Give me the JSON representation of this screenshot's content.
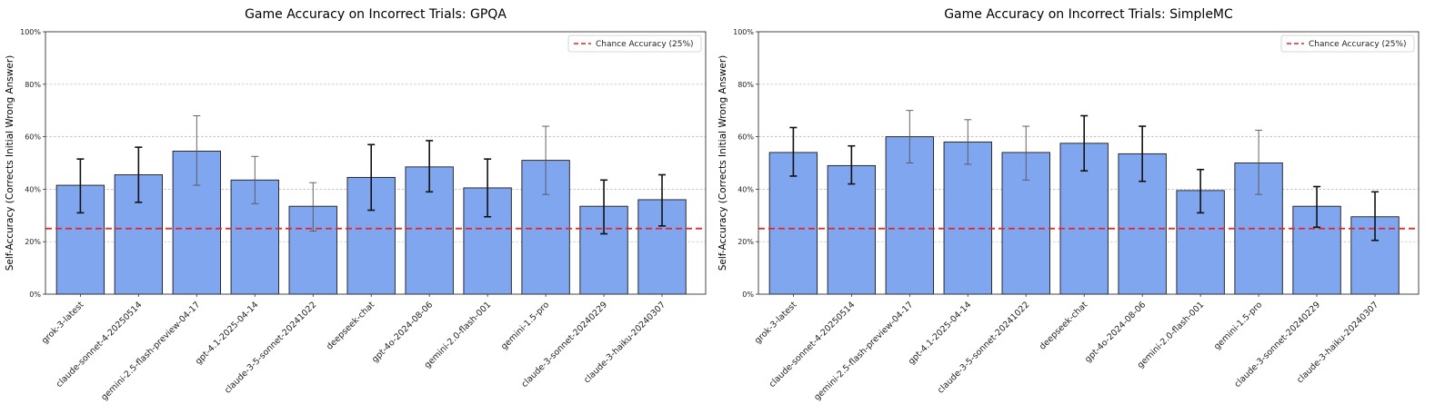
{
  "chart_data": [
    {
      "type": "bar",
      "title": "Game Accuracy on Incorrect Trials: GPQA",
      "xlabel": "",
      "ylabel": "Self-Accuracy (Corrects Initial Wrong Answer)",
      "ylim": [
        0,
        100
      ],
      "yticks": [
        "0%",
        "20%",
        "40%",
        "60%",
        "80%",
        "100%"
      ],
      "ytick_values": [
        0,
        20,
        40,
        60,
        80,
        100
      ],
      "grid": "horizontal dashed",
      "bar_color": "#7fa6ee",
      "chance_line": {
        "value": 25,
        "label": "Chance Accuracy (25%)",
        "color": "#e8242a"
      },
      "legend_position": "top-right",
      "categories": [
        "grok-3-latest",
        "claude-sonnet-4-20250514",
        "gemini-2.5-flash-preview-04-17",
        "gpt-4.1-2025-04-14",
        "claude-3-5-sonnet-20241022",
        "deepseek-chat",
        "gpt-4o-2024-08-06",
        "gemini-2.0-flash-001",
        "gemini-1.5-pro",
        "claude-3-sonnet-20240229",
        "claude-3-haiku-20240307"
      ],
      "values": [
        41.5,
        45.5,
        54.5,
        43.5,
        33.5,
        44.5,
        48.5,
        40.5,
        51,
        33.5,
        36
      ],
      "errors": [
        {
          "low": 31,
          "high": 51.5,
          "style": "bold"
        },
        {
          "low": 35,
          "high": 56,
          "style": "bold"
        },
        {
          "low": 41.5,
          "high": 68,
          "style": "thin"
        },
        {
          "low": 34.5,
          "high": 52.5,
          "style": "thin"
        },
        {
          "low": 24,
          "high": 42.5,
          "style": "thin"
        },
        {
          "low": 32,
          "high": 57,
          "style": "bold"
        },
        {
          "low": 39,
          "high": 58.5,
          "style": "bold"
        },
        {
          "low": 29.5,
          "high": 51.5,
          "style": "bold"
        },
        {
          "low": 38,
          "high": 64,
          "style": "thin"
        },
        {
          "low": 23,
          "high": 43.5,
          "style": "bold"
        },
        {
          "low": 26,
          "high": 45.5,
          "style": "bold"
        }
      ]
    },
    {
      "type": "bar",
      "title": "Game Accuracy on Incorrect Trials: SimpleMC",
      "xlabel": "",
      "ylabel": "Self-Accuracy (Corrects Initial Wrong Answer)",
      "ylim": [
        0,
        100
      ],
      "yticks": [
        "0%",
        "20%",
        "40%",
        "60%",
        "80%",
        "100%"
      ],
      "ytick_values": [
        0,
        20,
        40,
        60,
        80,
        100
      ],
      "grid": "horizontal dashed",
      "bar_color": "#7fa6ee",
      "chance_line": {
        "value": 25,
        "label": "Chance Accuracy (25%)",
        "color": "#e8242a"
      },
      "legend_position": "top-right",
      "categories": [
        "grok-3-latest",
        "claude-sonnet-4-20250514",
        "gemini-2.5-flash-preview-04-17",
        "gpt-4.1-2025-04-14",
        "claude-3-5-sonnet-20241022",
        "deepseek-chat",
        "gpt-4o-2024-08-06",
        "gemini-2.0-flash-001",
        "gemini-1.5-pro",
        "claude-3-sonnet-20240229",
        "claude-3-haiku-20240307"
      ],
      "values": [
        54,
        49,
        60,
        58,
        54,
        57.5,
        53.5,
        39.5,
        50,
        33.5,
        29.5
      ],
      "errors": [
        {
          "low": 45,
          "high": 63.5,
          "style": "bold"
        },
        {
          "low": 42,
          "high": 56.5,
          "style": "bold"
        },
        {
          "low": 50,
          "high": 70,
          "style": "thin"
        },
        {
          "low": 49.5,
          "high": 66.5,
          "style": "thin"
        },
        {
          "low": 43.5,
          "high": 64,
          "style": "thin"
        },
        {
          "low": 47,
          "high": 68,
          "style": "bold"
        },
        {
          "low": 43,
          "high": 64,
          "style": "bold"
        },
        {
          "low": 31,
          "high": 47.5,
          "style": "bold"
        },
        {
          "low": 38,
          "high": 62.5,
          "style": "thin"
        },
        {
          "low": 25.5,
          "high": 41,
          "style": "bold"
        },
        {
          "low": 20.5,
          "high": 39,
          "style": "bold"
        }
      ]
    }
  ]
}
